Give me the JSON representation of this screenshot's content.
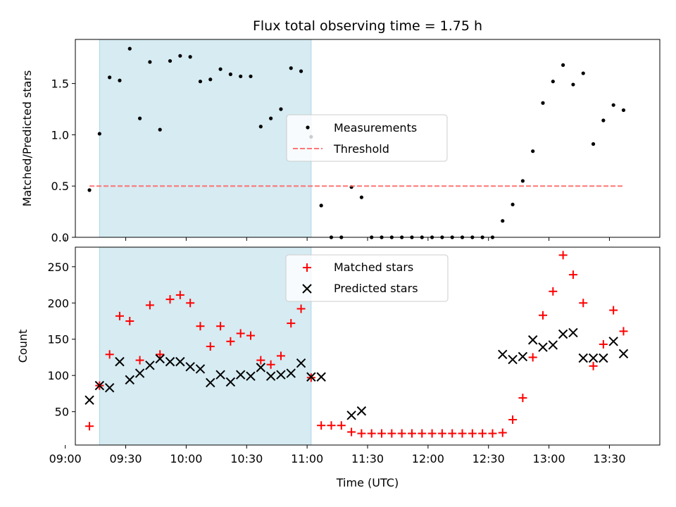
{
  "chart_data": [
    {
      "type": "scatter",
      "title": "Flux total observing time = 1.75 h",
      "ylabel": "Matched/Predicted stars",
      "xlabel": "",
      "ylim": [
        0,
        1.93
      ],
      "x_axis": "time",
      "xlim": [
        "09:05",
        "13:55"
      ],
      "y_ticks": [
        0.0,
        0.5,
        1.0,
        1.5
      ],
      "y_tick_labels": [
        "0.0",
        "0.5",
        "1.0",
        "1.5"
      ],
      "shaded_region": {
        "start": "09:17",
        "end": "11:02",
        "color": "#add8e6"
      },
      "legend": {
        "position": "center",
        "entries": [
          "Measurements",
          "Threshold"
        ]
      },
      "series": [
        {
          "name": "Measurements",
          "marker": "dot",
          "color": "#000000",
          "points": [
            [
              "09:12",
              0.46
            ],
            [
              "09:17",
              1.01
            ],
            [
              "09:22",
              1.56
            ],
            [
              "09:27",
              1.53
            ],
            [
              "09:32",
              1.84
            ],
            [
              "09:37",
              1.16
            ],
            [
              "09:42",
              1.71
            ],
            [
              "09:47",
              1.05
            ],
            [
              "09:52",
              1.72
            ],
            [
              "09:57",
              1.77
            ],
            [
              "10:02",
              1.76
            ],
            [
              "10:07",
              1.52
            ],
            [
              "10:12",
              1.54
            ],
            [
              "10:17",
              1.64
            ],
            [
              "10:22",
              1.59
            ],
            [
              "10:27",
              1.57
            ],
            [
              "10:32",
              1.57
            ],
            [
              "10:37",
              1.08
            ],
            [
              "10:42",
              1.16
            ],
            [
              "10:47",
              1.25
            ],
            [
              "10:52",
              1.65
            ],
            [
              "10:57",
              1.62
            ],
            [
              "11:02",
              0.98
            ],
            [
              "11:07",
              0.31
            ],
            [
              "11:12",
              0.0
            ],
            [
              "11:17",
              0.0
            ],
            [
              "11:22",
              0.49
            ],
            [
              "11:27",
              0.39
            ],
            [
              "11:32",
              0.0
            ],
            [
              "11:37",
              0.0
            ],
            [
              "11:42",
              0.0
            ],
            [
              "11:47",
              0.0
            ],
            [
              "11:52",
              0.0
            ],
            [
              "11:57",
              0.0
            ],
            [
              "12:02",
              0.0
            ],
            [
              "12:07",
              0.0
            ],
            [
              "12:12",
              0.0
            ],
            [
              "12:17",
              0.0
            ],
            [
              "12:22",
              0.0
            ],
            [
              "12:27",
              0.0
            ],
            [
              "12:32",
              0.0
            ],
            [
              "12:37",
              0.16
            ],
            [
              "12:42",
              0.32
            ],
            [
              "12:47",
              0.55
            ],
            [
              "12:52",
              0.84
            ],
            [
              "12:57",
              1.31
            ],
            [
              "13:02",
              1.52
            ],
            [
              "13:07",
              1.68
            ],
            [
              "13:12",
              1.49
            ],
            [
              "13:17",
              1.6
            ],
            [
              "13:22",
              0.91
            ],
            [
              "13:27",
              1.14
            ],
            [
              "13:32",
              1.29
            ],
            [
              "13:37",
              1.24
            ]
          ]
        },
        {
          "name": "Threshold",
          "marker": "dashed-line",
          "color": "#ff6666",
          "points": [
            [
              "09:12",
              0.5
            ],
            [
              "13:37",
              0.5
            ]
          ]
        }
      ]
    },
    {
      "type": "scatter",
      "title": "",
      "ylabel": "Count",
      "xlabel": "Time (UTC)",
      "ylim": [
        4,
        277
      ],
      "x_axis": "time",
      "xlim": [
        "09:05",
        "13:55"
      ],
      "x_ticks": [
        "09:00",
        "09:30",
        "10:00",
        "10:30",
        "11:00",
        "11:30",
        "12:00",
        "12:30",
        "13:00",
        "13:30"
      ],
      "x_tick_labels": [
        "09:00",
        "09:30",
        "10:00",
        "10:30",
        "11:00",
        "11:30",
        "12:00",
        "12:30",
        "13:00",
        "13:30"
      ],
      "y_ticks": [
        50,
        100,
        150,
        200,
        250
      ],
      "y_tick_labels": [
        "50",
        "100",
        "150",
        "200",
        "250"
      ],
      "shaded_region": {
        "start": "09:17",
        "end": "11:02",
        "color": "#add8e6"
      },
      "legend": {
        "position": "top-center",
        "entries": [
          "Matched stars",
          "Predicted stars"
        ]
      },
      "series": [
        {
          "name": "Matched stars",
          "marker": "plus",
          "color": "#ff0000",
          "points": [
            [
              "09:12",
              30
            ],
            [
              "09:17",
              86
            ],
            [
              "09:22",
              129
            ],
            [
              "09:27",
              182
            ],
            [
              "09:32",
              175
            ],
            [
              "09:37",
              121
            ],
            [
              "09:42",
              197
            ],
            [
              "09:47",
              129
            ],
            [
              "09:52",
              205
            ],
            [
              "09:57",
              211
            ],
            [
              "10:02",
              200
            ],
            [
              "10:07",
              168
            ],
            [
              "10:12",
              140
            ],
            [
              "10:17",
              168
            ],
            [
              "10:22",
              147
            ],
            [
              "10:27",
              158
            ],
            [
              "10:32",
              155
            ],
            [
              "10:37",
              121
            ],
            [
              "10:42",
              115
            ],
            [
              "10:47",
              127
            ],
            [
              "10:52",
              172
            ],
            [
              "10:57",
              192
            ],
            [
              "11:02",
              97
            ],
            [
              "11:07",
              31
            ],
            [
              "11:12",
              31
            ],
            [
              "11:17",
              31
            ],
            [
              "11:22",
              22
            ],
            [
              "11:27",
              20
            ],
            [
              "11:32",
              20
            ],
            [
              "11:37",
              20
            ],
            [
              "11:42",
              20
            ],
            [
              "11:47",
              20
            ],
            [
              "11:52",
              20
            ],
            [
              "11:57",
              20
            ],
            [
              "12:02",
              20
            ],
            [
              "12:07",
              20
            ],
            [
              "12:12",
              20
            ],
            [
              "12:17",
              20
            ],
            [
              "12:22",
              20
            ],
            [
              "12:27",
              20
            ],
            [
              "12:32",
              20
            ],
            [
              "12:37",
              21
            ],
            [
              "12:42",
              39
            ],
            [
              "12:47",
              69
            ],
            [
              "12:52",
              125
            ],
            [
              "12:57",
              183
            ],
            [
              "13:02",
              216
            ],
            [
              "13:07",
              266
            ],
            [
              "13:12",
              239
            ],
            [
              "13:17",
              200
            ],
            [
              "13:22",
              113
            ],
            [
              "13:27",
              143
            ],
            [
              "13:32",
              190
            ],
            [
              "13:37",
              161
            ]
          ]
        },
        {
          "name": "Predicted stars",
          "marker": "x",
          "color": "#000000",
          "points": [
            [
              "09:12",
              66
            ],
            [
              "09:17",
              86
            ],
            [
              "09:22",
              83
            ],
            [
              "09:27",
              119
            ],
            [
              "09:32",
              94
            ],
            [
              "09:37",
              103
            ],
            [
              "09:42",
              114
            ],
            [
              "09:47",
              123
            ],
            [
              "09:52",
              119
            ],
            [
              "09:57",
              119
            ],
            [
              "10:02",
              112
            ],
            [
              "10:07",
              109
            ],
            [
              "10:12",
              90
            ],
            [
              "10:17",
              101
            ],
            [
              "10:22",
              91
            ],
            [
              "10:27",
              101
            ],
            [
              "10:32",
              99
            ],
            [
              "10:37",
              111
            ],
            [
              "10:42",
              99
            ],
            [
              "10:47",
              101
            ],
            [
              "10:52",
              103
            ],
            [
              "10:57",
              117
            ],
            [
              "11:02",
              98
            ],
            [
              "11:07",
              98
            ],
            [
              "11:22",
              45
            ],
            [
              "11:27",
              51
            ],
            [
              "12:37",
              129
            ],
            [
              "12:42",
              122
            ],
            [
              "12:47",
              126
            ],
            [
              "12:52",
              149
            ],
            [
              "12:57",
              139
            ],
            [
              "13:02",
              142
            ],
            [
              "13:07",
              157
            ],
            [
              "13:12",
              159
            ],
            [
              "13:17",
              124
            ],
            [
              "13:22",
              124
            ],
            [
              "13:27",
              124
            ],
            [
              "13:32",
              147
            ],
            [
              "13:37",
              130
            ]
          ]
        }
      ]
    }
  ]
}
